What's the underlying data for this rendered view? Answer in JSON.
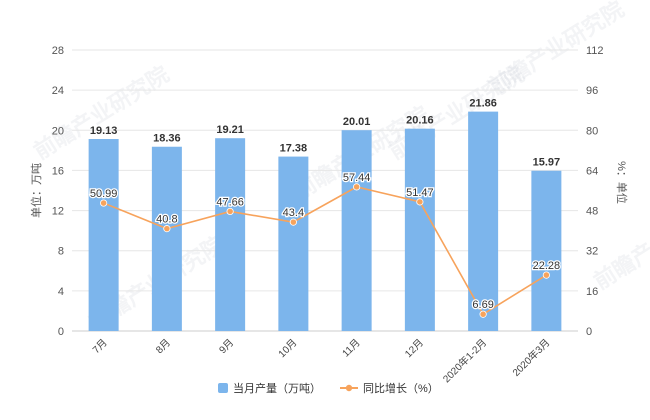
{
  "chart_data": {
    "type": "bar",
    "categories": [
      "7月",
      "8月",
      "9月",
      "10月",
      "11月",
      "12月",
      "2020年1-2月",
      "2020年3月"
    ],
    "series": [
      {
        "name": "当月产量（万吨）",
        "type": "bar",
        "axis": "left",
        "values": [
          19.13,
          18.36,
          19.21,
          17.38,
          20.01,
          20.16,
          21.86,
          15.97
        ]
      },
      {
        "name": "同比增长（%）",
        "type": "line",
        "axis": "right",
        "values": [
          50.99,
          40.8,
          47.66,
          43.4,
          57.44,
          51.47,
          6.69,
          22.28
        ]
      }
    ],
    "ylabel": "单位：万吨",
    "y2label": "%：单位",
    "ylim": [
      0,
      28
    ],
    "y2lim": [
      0,
      112
    ],
    "yticks": [
      0,
      4,
      8,
      12,
      16,
      20,
      24,
      28
    ],
    "y2ticks": [
      0,
      16,
      32,
      48,
      64,
      80,
      96,
      112
    ],
    "grid": true,
    "legend": "bottom-center",
    "colors": {
      "bar": "#7cb5ec",
      "line": "#f7a35c"
    }
  },
  "watermark": "前瞻产业研究院"
}
